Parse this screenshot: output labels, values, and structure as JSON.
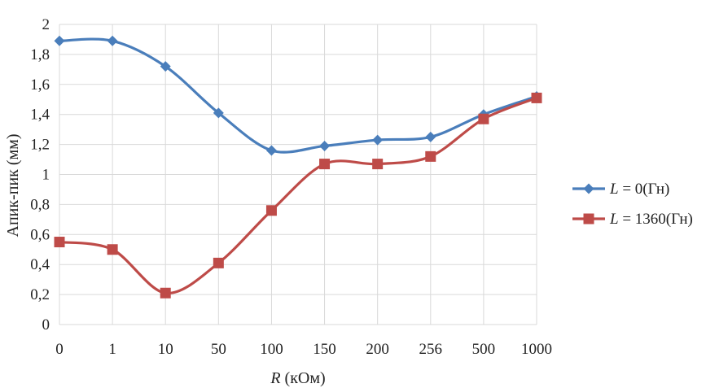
{
  "chart_data": {
    "type": "line",
    "title": "",
    "categories": [
      "0",
      "1",
      "10",
      "50",
      "100",
      "150",
      "200",
      "256",
      "500",
      "1000"
    ],
    "series": [
      {
        "name_var": "L",
        "name_rest": " = 0(Гн)",
        "color": "#4a7ebb",
        "marker": "diamond",
        "values": [
          1.89,
          1.89,
          1.72,
          1.41,
          1.16,
          1.19,
          1.23,
          1.25,
          1.4,
          1.52
        ]
      },
      {
        "name_var": "L",
        "name_rest": " = 1360(Гн)",
        "color": "#be4b48",
        "marker": "square",
        "values": [
          0.55,
          0.5,
          0.21,
          0.41,
          0.76,
          1.07,
          1.07,
          1.12,
          1.37,
          1.51
        ]
      }
    ],
    "xlabel_var": "R",
    "xlabel_rest": " (кОм)",
    "ylabel": "Апик-пик (мм)",
    "ylim": [
      0,
      2
    ],
    "yticks": [
      "0",
      "0,2",
      "0,4",
      "0,6",
      "0,8",
      "1",
      "1,2",
      "1,4",
      "1,6",
      "1,8",
      "2"
    ],
    "grid": true,
    "legend": "right"
  }
}
